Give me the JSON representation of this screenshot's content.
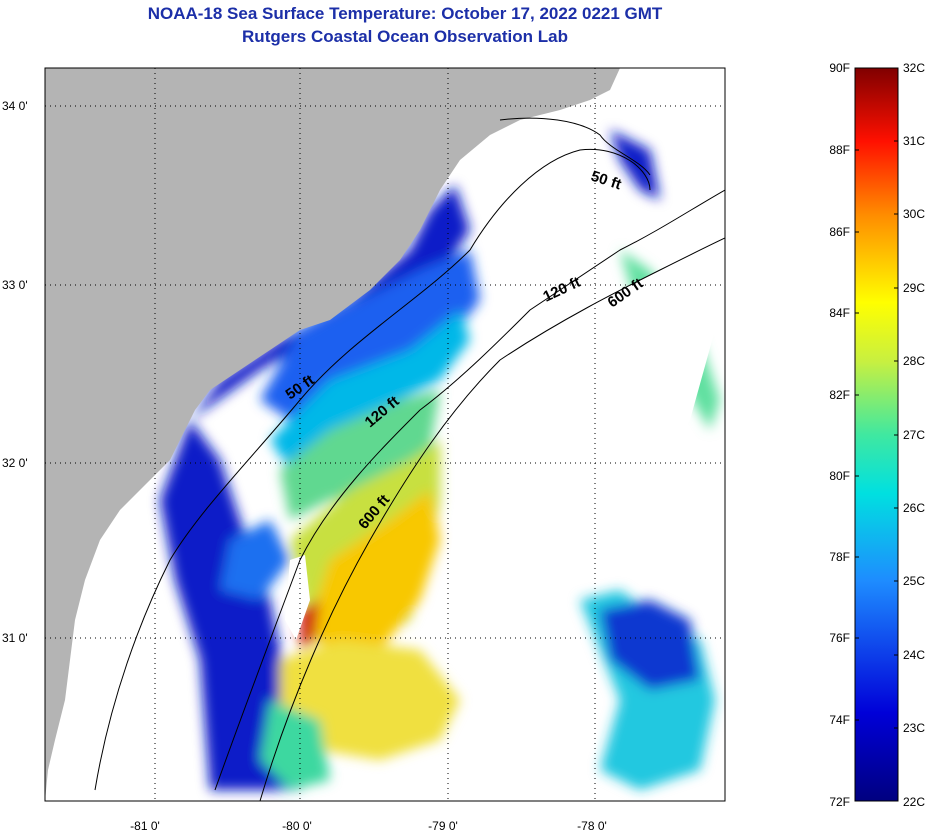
{
  "header": {
    "title": "NOAA-18 Sea Surface Temperature:  October 17, 2022 0221 GMT",
    "subtitle": "Rutgers Coastal Ocean Observation Lab"
  },
  "map": {
    "lat_labels": [
      "34 0'",
      "33 0'",
      "32 0'",
      "31 0'"
    ],
    "lon_labels": [
      "-81 0'",
      "-80 0'",
      "-79 0'",
      "-78 0'"
    ],
    "isobath_labels": [
      "50 ft",
      "120 ft",
      "600 ft",
      "50 ft",
      "120 ft",
      "600 ft"
    ],
    "colors": {
      "land": "#b4b4b4",
      "frame": "#000000"
    }
  },
  "colorbar": {
    "fahrenheit": [
      "90F",
      "88F",
      "86F",
      "84F",
      "82F",
      "80F",
      "78F",
      "76F",
      "74F",
      "72F"
    ],
    "celsius": [
      "32C",
      "31C",
      "30C",
      "29C",
      "28C",
      "27C",
      "26C",
      "25C",
      "24C",
      "23C",
      "22C"
    ]
  }
}
